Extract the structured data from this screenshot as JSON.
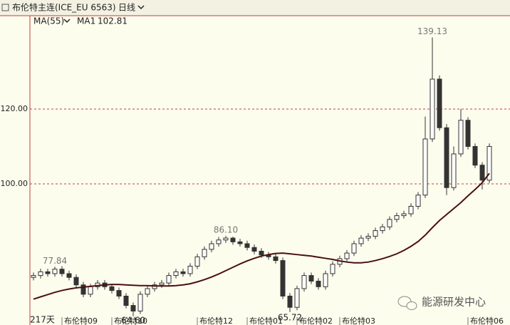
{
  "chart_data": {
    "type": "candlestick",
    "title": "布伦特主连(ICE_EU 6563)",
    "period": "日线",
    "indicator": "MA(55)",
    "bar_count": "217天",
    "watermark": "能源研发中心",
    "ylim": [
      63.8,
      144.95
    ],
    "yticks": [
      {
        "value": 100,
        "label": "100.00"
      },
      {
        "value": 120,
        "label": "120.00"
      }
    ],
    "grid": true,
    "up_color": "#ffffff",
    "down_color": "#333333",
    "edge_color": "#333333",
    "categories": [
      null,
      null,
      null,
      null,
      "布伦特09",
      null,
      null,
      null,
      null,
      null,
      null,
      "布伦特10",
      null,
      null,
      null,
      null,
      null,
      null,
      null,
      null,
      null,
      null,
      null,
      "布伦特12",
      null,
      null,
      null,
      null,
      null,
      null,
      "布伦特01",
      null,
      null,
      null,
      null,
      null,
      null,
      "布伦特02",
      null,
      null,
      null,
      null,
      null,
      "布伦特03",
      null,
      null,
      null,
      null,
      null,
      null,
      null,
      null,
      null,
      null,
      null,
      null,
      null,
      null,
      null,
      null,
      null,
      "布伦特06",
      null,
      null,
      null
    ],
    "open": [
      75.0,
      75.5,
      76.5,
      76.0,
      77.2,
      76.0,
      75.0,
      73.0,
      70.5,
      72.5,
      73.5,
      72.5,
      71.5,
      70.0,
      67.5,
      66.0,
      70.5,
      72.0,
      73.0,
      73.5,
      75.5,
      76.5,
      76.0,
      78.0,
      80.5,
      82.5,
      84.0,
      85.0,
      85.5,
      84.5,
      84.0,
      83.0,
      82.0,
      81.0,
      80.5,
      79.5,
      70.0,
      67.0,
      72.0,
      75.5,
      74.0,
      72.5,
      76.0,
      78.5,
      80.0,
      81.5,
      84.0,
      85.5,
      86.0,
      87.5,
      88.5,
      90.5,
      91.5,
      92.0,
      94.0,
      97.0,
      112.0,
      128.0,
      115.0,
      99.0,
      108.0,
      117.0,
      110.0,
      105.0,
      101.0
    ],
    "high": [
      76.3,
      77.3,
      77.3,
      77.84,
      78.0,
      76.8,
      75.8,
      73.8,
      73.3,
      74.3,
      74.3,
      73.3,
      72.3,
      70.8,
      68.3,
      71.3,
      72.8,
      73.8,
      74.3,
      76.3,
      77.3,
      77.3,
      78.8,
      81.3,
      83.3,
      84.8,
      85.8,
      86.1,
      85.9,
      85.3,
      84.8,
      83.8,
      82.8,
      81.8,
      81.3,
      80.3,
      70.8,
      72.8,
      76.3,
      76.3,
      74.8,
      76.8,
      79.3,
      80.8,
      82.3,
      84.8,
      86.3,
      86.8,
      88.3,
      89.3,
      91.3,
      92.3,
      92.8,
      94.8,
      97.8,
      118.0,
      139.13,
      129.0,
      116.0,
      110.0,
      120.0,
      117.8,
      110.8,
      105.8,
      110.8
    ],
    "low": [
      74.2,
      74.7,
      75.2,
      75.2,
      75.2,
      74.2,
      72.2,
      69.7,
      69.7,
      71.7,
      71.7,
      70.7,
      69.2,
      66.7,
      64.6,
      65.2,
      69.7,
      71.2,
      72.2,
      72.7,
      74.7,
      75.2,
      75.2,
      77.2,
      79.7,
      81.7,
      83.2,
      84.2,
      83.7,
      83.2,
      82.2,
      81.2,
      80.2,
      79.7,
      78.7,
      69.2,
      65.72,
      66.2,
      71.2,
      73.2,
      71.7,
      71.7,
      75.2,
      77.7,
      79.2,
      80.7,
      83.2,
      84.7,
      85.2,
      86.7,
      87.7,
      89.7,
      90.7,
      91.2,
      93.2,
      96.2,
      111.2,
      114.2,
      97.0,
      98.2,
      107.2,
      109.2,
      104.2,
      98.5,
      100.2
    ],
    "close": [
      75.5,
      76.5,
      76.0,
      77.2,
      76.0,
      75.0,
      73.0,
      70.5,
      72.5,
      73.5,
      72.5,
      71.5,
      70.0,
      67.5,
      66.0,
      70.5,
      72.0,
      73.0,
      73.5,
      75.5,
      76.5,
      76.0,
      78.0,
      80.5,
      82.5,
      84.0,
      85.0,
      85.5,
      84.5,
      84.0,
      83.0,
      82.0,
      81.0,
      80.5,
      79.5,
      70.0,
      67.0,
      72.0,
      75.5,
      74.0,
      72.5,
      76.0,
      78.5,
      80.0,
      81.5,
      84.0,
      85.5,
      86.0,
      87.5,
      88.5,
      90.5,
      91.5,
      92.0,
      94.0,
      97.0,
      112.0,
      128.0,
      115.0,
      99.0,
      108.0,
      117.0,
      110.0,
      105.0,
      101.0,
      110.0
    ],
    "high_labels": [
      null,
      null,
      null,
      "77.84",
      null,
      null,
      null,
      null,
      null,
      null,
      null,
      null,
      null,
      null,
      null,
      null,
      null,
      null,
      null,
      null,
      null,
      null,
      null,
      null,
      null,
      null,
      null,
      "86.10",
      null,
      null,
      null,
      null,
      null,
      null,
      null,
      null,
      null,
      null,
      null,
      null,
      null,
      null,
      null,
      null,
      null,
      null,
      null,
      null,
      null,
      null,
      null,
      null,
      null,
      null,
      null,
      null,
      "139.13",
      null,
      null,
      null,
      null,
      null,
      null,
      null,
      null
    ],
    "low_labels": [
      null,
      null,
      null,
      null,
      null,
      null,
      null,
      null,
      null,
      null,
      null,
      null,
      null,
      null,
      "64.60",
      null,
      null,
      null,
      null,
      null,
      null,
      null,
      null,
      null,
      null,
      null,
      null,
      null,
      null,
      null,
      null,
      null,
      null,
      null,
      null,
      null,
      "65.72",
      null,
      null,
      null,
      null,
      null,
      null,
      null,
      null,
      null,
      null,
      null,
      null,
      null,
      null,
      null,
      null,
      null,
      null,
      null,
      null,
      null,
      null,
      null,
      null,
      null,
      null,
      null,
      null
    ],
    "ma": {
      "name": "MA1",
      "color": "#4a1010",
      "values": [
        69.2,
        69.8,
        70.4,
        71.0,
        71.5,
        71.9,
        72.2,
        72.4,
        72.6,
        72.8,
        73.0,
        73.1,
        73.1,
        73.0,
        72.9,
        72.8,
        72.8,
        72.7,
        72.7,
        72.7,
        72.8,
        73.0,
        73.3,
        73.8,
        74.4,
        75.1,
        75.9,
        76.8,
        77.7,
        78.6,
        79.4,
        80.1,
        80.7,
        81.1,
        81.4,
        81.5,
        81.3,
        81.1,
        80.9,
        80.7,
        80.4,
        80.1,
        79.8,
        79.4,
        79.1,
        78.9,
        78.9,
        79.1,
        79.5,
        80.0,
        80.6,
        81.3,
        82.2,
        83.3,
        84.6,
        86.3,
        88.3,
        90.2,
        91.8,
        93.4,
        95.0,
        96.8,
        98.5,
        100.3,
        102.81
      ]
    }
  }
}
